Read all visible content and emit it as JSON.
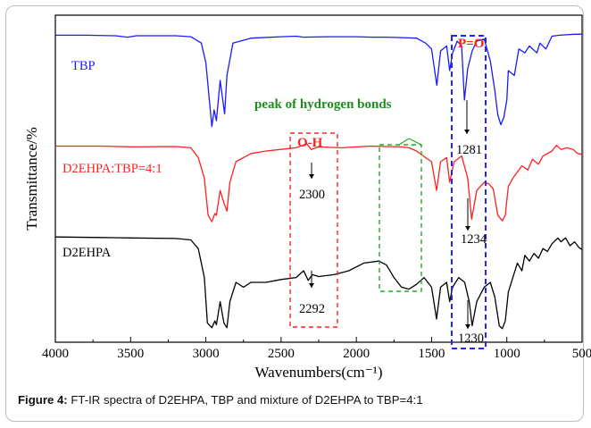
{
  "figure": {
    "caption_label": "Figure 4:",
    "caption_text": " FT-IR spectra of D2EHPA, TBP and mixture of D2EHPA to TBP=4:1"
  },
  "chart_data": {
    "type": "line",
    "title": "",
    "xlabel": "Wavenumbers(cm⁻¹)",
    "ylabel": "Transmittance/%",
    "xlim": [
      4000,
      500
    ],
    "x_reversed": true,
    "x_ticks": [
      "4000",
      "3500",
      "3000",
      "2500",
      "2000",
      "1500",
      "1000",
      "500"
    ],
    "y_ticks_shown": false,
    "legend": "none (series labeled inline)",
    "series": [
      {
        "name": "TBP",
        "color": "#1a1aff",
        "points": [
          [
            4000,
            0.96
          ],
          [
            3800,
            0.96
          ],
          [
            3600,
            0.955
          ],
          [
            3520,
            0.94
          ],
          [
            3460,
            0.955
          ],
          [
            3200,
            0.955
          ],
          [
            3100,
            0.945
          ],
          [
            3030,
            0.88
          ],
          [
            3000,
            0.68
          ],
          [
            2960,
            0.03
          ],
          [
            2945,
            0.2
          ],
          [
            2930,
            0.09
          ],
          [
            2905,
            0.5
          ],
          [
            2875,
            0.16
          ],
          [
            2860,
            0.55
          ],
          [
            2820,
            0.88
          ],
          [
            2700,
            0.93
          ],
          [
            2500,
            0.945
          ],
          [
            2400,
            0.95
          ],
          [
            2350,
            0.94
          ],
          [
            2200,
            0.945
          ],
          [
            2000,
            0.945
          ],
          [
            1900,
            0.94
          ],
          [
            1800,
            0.94
          ],
          [
            1700,
            0.935
          ],
          [
            1600,
            0.93
          ],
          [
            1540,
            0.88
          ],
          [
            1500,
            0.82
          ],
          [
            1465,
            0.45
          ],
          [
            1440,
            0.8
          ],
          [
            1400,
            0.85
          ],
          [
            1380,
            0.6
          ],
          [
            1360,
            0.78
          ],
          [
            1330,
            0.9
          ],
          [
            1300,
            0.85
          ],
          [
            1282,
            0.3
          ],
          [
            1260,
            0.62
          ],
          [
            1230,
            0.8
          ],
          [
            1200,
            0.9
          ],
          [
            1150,
            0.92
          ],
          [
            1110,
            0.7
          ],
          [
            1080,
            0.4
          ],
          [
            1060,
            0.15
          ],
          [
            1040,
            0.05
          ],
          [
            1020,
            0.12
          ],
          [
            1000,
            0.3
          ],
          [
            990,
            0.6
          ],
          [
            950,
            0.55
          ],
          [
            920,
            0.82
          ],
          [
            880,
            0.78
          ],
          [
            850,
            0.85
          ],
          [
            800,
            0.78
          ],
          [
            780,
            0.88
          ],
          [
            740,
            0.82
          ],
          [
            700,
            0.95
          ],
          [
            650,
            0.96
          ],
          [
            600,
            0.965
          ],
          [
            550,
            0.97
          ],
          [
            500,
            0.97
          ]
        ]
      },
      {
        "name": "D2EHPA:TBP=4:1",
        "color": "#ff1f1f",
        "points": [
          [
            4000,
            0.94
          ],
          [
            3700,
            0.94
          ],
          [
            3500,
            0.93
          ],
          [
            3200,
            0.935
          ],
          [
            3100,
            0.92
          ],
          [
            3050,
            0.8
          ],
          [
            3010,
            0.55
          ],
          [
            2985,
            0.1
          ],
          [
            2960,
            0.02
          ],
          [
            2940,
            0.12
          ],
          [
            2930,
            0.1
          ],
          [
            2905,
            0.4
          ],
          [
            2880,
            0.25
          ],
          [
            2860,
            0.15
          ],
          [
            2840,
            0.5
          ],
          [
            2800,
            0.75
          ],
          [
            2700,
            0.85
          ],
          [
            2600,
            0.88
          ],
          [
            2500,
            0.9
          ],
          [
            2400,
            0.92
          ],
          [
            2330,
            0.97
          ],
          [
            2300,
            0.9
          ],
          [
            2250,
            0.93
          ],
          [
            2100,
            0.92
          ],
          [
            2000,
            0.93
          ],
          [
            1900,
            0.94
          ],
          [
            1800,
            0.935
          ],
          [
            1700,
            0.93
          ],
          [
            1650,
            0.92
          ],
          [
            1600,
            0.88
          ],
          [
            1540,
            0.8
          ],
          [
            1500,
            0.75
          ],
          [
            1467,
            0.4
          ],
          [
            1440,
            0.75
          ],
          [
            1400,
            0.8
          ],
          [
            1380,
            0.5
          ],
          [
            1350,
            0.75
          ],
          [
            1300,
            0.82
          ],
          [
            1260,
            0.55
          ],
          [
            1234,
            0.05
          ],
          [
            1200,
            0.4
          ],
          [
            1150,
            0.5
          ],
          [
            1120,
            0.48
          ],
          [
            1090,
            0.42
          ],
          [
            1060,
            0.1
          ],
          [
            1030,
            0.03
          ],
          [
            1010,
            0.1
          ],
          [
            990,
            0.45
          ],
          [
            960,
            0.55
          ],
          [
            900,
            0.7
          ],
          [
            860,
            0.65
          ],
          [
            830,
            0.78
          ],
          [
            790,
            0.72
          ],
          [
            760,
            0.82
          ],
          [
            730,
            0.85
          ],
          [
            700,
            0.88
          ],
          [
            670,
            0.95
          ],
          [
            640,
            0.9
          ],
          [
            600,
            0.92
          ],
          [
            560,
            0.9
          ],
          [
            530,
            0.85
          ],
          [
            500,
            0.84
          ]
        ]
      },
      {
        "name": "D2EHPA",
        "color": "#000000",
        "points": [
          [
            4000,
            0.97
          ],
          [
            3700,
            0.965
          ],
          [
            3500,
            0.96
          ],
          [
            3200,
            0.955
          ],
          [
            3100,
            0.94
          ],
          [
            3050,
            0.85
          ],
          [
            3010,
            0.55
          ],
          [
            2990,
            0.08
          ],
          [
            2960,
            0.03
          ],
          [
            2940,
            0.1
          ],
          [
            2930,
            0.06
          ],
          [
            2905,
            0.3
          ],
          [
            2880,
            0.08
          ],
          [
            2860,
            0.03
          ],
          [
            2840,
            0.3
          ],
          [
            2800,
            0.5
          ],
          [
            2750,
            0.45
          ],
          [
            2700,
            0.5
          ],
          [
            2600,
            0.5
          ],
          [
            2500,
            0.53
          ],
          [
            2400,
            0.55
          ],
          [
            2350,
            0.62
          ],
          [
            2320,
            0.52
          ],
          [
            2292,
            0.58
          ],
          [
            2250,
            0.56
          ],
          [
            2150,
            0.58
          ],
          [
            2050,
            0.62
          ],
          [
            1950,
            0.7
          ],
          [
            1850,
            0.72
          ],
          [
            1800,
            0.68
          ],
          [
            1750,
            0.55
          ],
          [
            1700,
            0.45
          ],
          [
            1650,
            0.43
          ],
          [
            1600,
            0.48
          ],
          [
            1550,
            0.55
          ],
          [
            1500,
            0.45
          ],
          [
            1467,
            0.12
          ],
          [
            1440,
            0.45
          ],
          [
            1400,
            0.5
          ],
          [
            1380,
            0.3
          ],
          [
            1360,
            0.45
          ],
          [
            1320,
            0.55
          ],
          [
            1280,
            0.5
          ],
          [
            1250,
            0.3
          ],
          [
            1230,
            0.05
          ],
          [
            1200,
            0.3
          ],
          [
            1150,
            0.45
          ],
          [
            1110,
            0.5
          ],
          [
            1080,
            0.35
          ],
          [
            1050,
            0.05
          ],
          [
            1030,
            0.02
          ],
          [
            1010,
            0.1
          ],
          [
            990,
            0.4
          ],
          [
            960,
            0.55
          ],
          [
            930,
            0.7
          ],
          [
            900,
            0.62
          ],
          [
            880,
            0.78
          ],
          [
            850,
            0.72
          ],
          [
            820,
            0.8
          ],
          [
            790,
            0.75
          ],
          [
            760,
            0.85
          ],
          [
            730,
            0.82
          ],
          [
            700,
            0.9
          ],
          [
            660,
            0.96
          ],
          [
            640,
            0.92
          ],
          [
            610,
            0.96
          ],
          [
            580,
            0.88
          ],
          [
            550,
            0.92
          ],
          [
            520,
            0.86
          ],
          [
            500,
            0.84
          ]
        ]
      }
    ],
    "annotations": [
      {
        "text": "P=O",
        "color": "#ff1f1f"
      },
      {
        "text": "O-H",
        "color": "#ff1f1f"
      },
      {
        "text": "peak of hydrogen bonds",
        "color": "#1e8c1e"
      },
      {
        "text": "1281",
        "color": "#000000"
      },
      {
        "text": "2300",
        "color": "#000000"
      },
      {
        "text": "1234",
        "color": "#000000"
      },
      {
        "text": "2292",
        "color": "#000000"
      },
      {
        "text": "1230",
        "color": "#000000"
      }
    ]
  }
}
